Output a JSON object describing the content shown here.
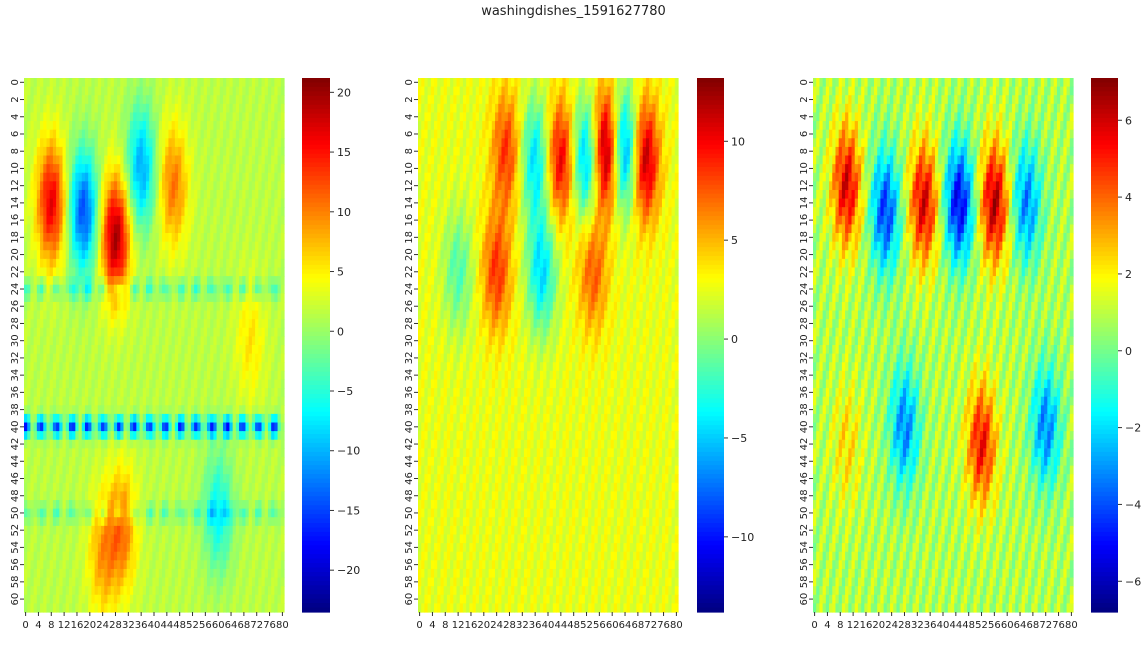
{
  "figure": {
    "title": "washingdishes_1591627780"
  },
  "chart_data": [
    {
      "type": "heatmap",
      "colormap": "jet",
      "rows": 62,
      "cols": 81,
      "x_ticks": [
        "0",
        "4",
        "8",
        "12",
        "16",
        "20",
        "24",
        "28",
        "32",
        "36",
        "40",
        "44",
        "48",
        "52",
        "56",
        "60",
        "64",
        "68",
        "72",
        "76",
        "80"
      ],
      "y_ticks": [
        "0",
        "2",
        "4",
        "6",
        "8",
        "10",
        "12",
        "14",
        "16",
        "18",
        "20",
        "22",
        "24",
        "26",
        "28",
        "30",
        "32",
        "34",
        "36",
        "38",
        "40",
        "42",
        "44",
        "46",
        "48",
        "50",
        "52",
        "54",
        "56",
        "58",
        "60"
      ],
      "colorbar": {
        "min": -23.5,
        "max": 21.2,
        "ticks": [
          20,
          15,
          10,
          5,
          0,
          -5,
          -10,
          -15,
          -20
        ],
        "tick_labels": [
          "20",
          "15",
          "10",
          "5",
          "0",
          "−5",
          "−10",
          "−15",
          "−20"
        ]
      },
      "pattern": {
        "offset": 1.5,
        "sources": [
          {
            "col": 8,
            "row": 14,
            "amp": 15
          },
          {
            "col": 28,
            "row": 18,
            "amp": 18
          },
          {
            "col": 18,
            "row": 15,
            "amp": -16
          },
          {
            "col": 36,
            "row": 10,
            "amp": -12
          },
          {
            "col": 46,
            "row": 12,
            "amp": 9
          },
          {
            "col": 30,
            "row": 52,
            "amp": 9
          },
          {
            "col": 24,
            "row": 55,
            "amp": 7
          },
          {
            "col": 60,
            "row": 50,
            "amp": -8
          },
          {
            "col": 70,
            "row": 30,
            "amp": 4
          }
        ],
        "bands": [
          {
            "row": 40,
            "amp": -18
          },
          {
            "row": 24,
            "amp": -6
          },
          {
            "row": 50,
            "amp": -5
          }
        ]
      }
    },
    {
      "type": "heatmap",
      "colormap": "jet",
      "rows": 62,
      "cols": 81,
      "x_ticks": [
        "0",
        "4",
        "8",
        "12",
        "16",
        "20",
        "24",
        "28",
        "32",
        "36",
        "40",
        "44",
        "48",
        "52",
        "56",
        "60",
        "64",
        "68",
        "72",
        "76",
        "80"
      ],
      "y_ticks": [
        "0",
        "2",
        "4",
        "6",
        "8",
        "10",
        "12",
        "14",
        "16",
        "18",
        "20",
        "22",
        "24",
        "26",
        "28",
        "30",
        "32",
        "34",
        "36",
        "38",
        "40",
        "42",
        "44",
        "46",
        "48",
        "50",
        "52",
        "54",
        "56",
        "58",
        "60"
      ],
      "colorbar": {
        "min": -13.8,
        "max": 13.2,
        "ticks": [
          10,
          5,
          0,
          -5,
          -10
        ],
        "tick_labels": [
          "10",
          "5",
          "0",
          "−5",
          "−10"
        ]
      },
      "pattern": {
        "offset": 2.5,
        "sources": [
          {
            "col": 58,
            "row": 8,
            "amp": 12
          },
          {
            "col": 64,
            "row": 8,
            "amp": -11
          },
          {
            "col": 70,
            "row": 9,
            "amp": 10
          },
          {
            "col": 52,
            "row": 9,
            "amp": -9
          },
          {
            "col": 44,
            "row": 9,
            "amp": 8
          },
          {
            "col": 36,
            "row": 9,
            "amp": -7
          },
          {
            "col": 27,
            "row": 8,
            "amp": 6
          },
          {
            "col": 24,
            "row": 22,
            "amp": 6
          },
          {
            "col": 38,
            "row": 22,
            "amp": -7
          },
          {
            "col": 54,
            "row": 22,
            "amp": 5
          },
          {
            "col": 12,
            "row": 22,
            "amp": -4
          }
        ],
        "bands": []
      }
    },
    {
      "type": "heatmap",
      "colormap": "jet",
      "rows": 62,
      "cols": 81,
      "x_ticks": [
        "0",
        "4",
        "8",
        "12",
        "16",
        "20",
        "24",
        "28",
        "32",
        "36",
        "40",
        "44",
        "48",
        "52",
        "56",
        "60",
        "64",
        "68",
        "72",
        "76",
        "80"
      ],
      "y_ticks": [
        "0",
        "2",
        "4",
        "6",
        "8",
        "10",
        "12",
        "14",
        "16",
        "18",
        "20",
        "22",
        "24",
        "26",
        "28",
        "30",
        "32",
        "34",
        "36",
        "38",
        "40",
        "42",
        "44",
        "46",
        "48",
        "50",
        "52",
        "54",
        "56",
        "58",
        "60"
      ],
      "colorbar": {
        "min": -6.8,
        "max": 7.1,
        "ticks": [
          6,
          4,
          2,
          0,
          -2,
          -4,
          -6
        ],
        "tick_labels": [
          "6",
          "4",
          "2",
          "0",
          "−2",
          "−4",
          "−6"
        ]
      },
      "pattern": {
        "offset": 0.8,
        "sources": [
          {
            "col": 10,
            "row": 12,
            "amp": 5
          },
          {
            "col": 22,
            "row": 15,
            "amp": -5
          },
          {
            "col": 34,
            "row": 14,
            "amp": 5
          },
          {
            "col": 45,
            "row": 14,
            "amp": -6
          },
          {
            "col": 56,
            "row": 14,
            "amp": 5.5
          },
          {
            "col": 66,
            "row": 14,
            "amp": -4
          },
          {
            "col": 52,
            "row": 42,
            "amp": 4.5
          },
          {
            "col": 28,
            "row": 40,
            "amp": -4
          },
          {
            "col": 72,
            "row": 40,
            "amp": -4
          },
          {
            "col": 10,
            "row": 42,
            "amp": 1.5
          }
        ],
        "bands": []
      }
    }
  ]
}
